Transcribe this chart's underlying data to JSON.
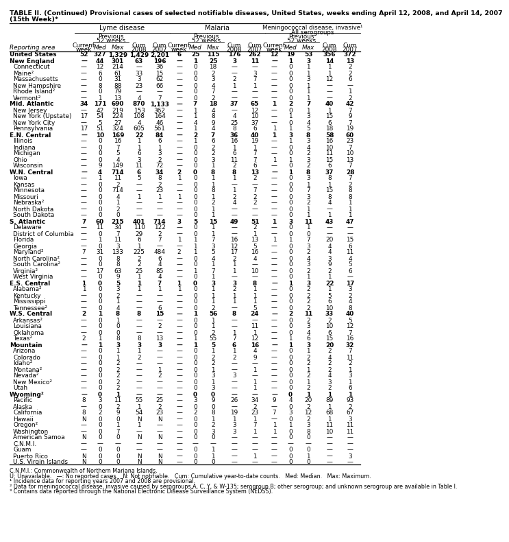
{
  "title_line1": "TABLE II. (Continued) Provisional cases of selected notifiable diseases, United States, weeks ending April 12, 2008, and April 14, 2007",
  "title_line2": "(15th Week)*",
  "rows": [
    [
      "United States",
      "52",
      "327",
      "1,329",
      "1,429",
      "2,201",
      "6",
      "25",
      "115",
      "176",
      "262",
      "12",
      "19",
      "53",
      "356",
      "372"
    ],
    [
      "New England",
      "—",
      "44",
      "301",
      "63",
      "196",
      "—",
      "1",
      "25",
      "3",
      "11",
      "—",
      "1",
      "3",
      "14",
      "13"
    ],
    [
      "Connecticut",
      "—",
      "12",
      "214",
      "—",
      "36",
      "—",
      "0",
      "18",
      "—",
      "—",
      "—",
      "0",
      "1",
      "1",
      "2"
    ],
    [
      "Maine²",
      "—",
      "6",
      "61",
      "33",
      "15",
      "—",
      "0",
      "2",
      "—",
      "3",
      "—",
      "0",
      "1",
      "1",
      "2"
    ],
    [
      "Massachusetts",
      "—",
      "0",
      "31",
      "3",
      "62",
      "—",
      "0",
      "3",
      "2",
      "7",
      "—",
      "0",
      "3",
      "12",
      "6"
    ],
    [
      "New Hampshire",
      "—",
      "8",
      "88",
      "23",
      "66",
      "—",
      "0",
      "4",
      "1",
      "1",
      "—",
      "0",
      "1",
      "—",
      "—"
    ],
    [
      "Rhode Island²",
      "—",
      "0",
      "79",
      "—",
      "—",
      "—",
      "0",
      "7",
      "—",
      "—",
      "—",
      "0",
      "1",
      "—",
      "1"
    ],
    [
      "Vermont²",
      "—",
      "1",
      "13",
      "4",
      "7",
      "—",
      "0",
      "2",
      "—",
      "—",
      "—",
      "0",
      "1",
      "—",
      "2"
    ],
    [
      "Mid. Atlantic",
      "34",
      "171",
      "690",
      "870",
      "1,133",
      "—",
      "7",
      "18",
      "37",
      "65",
      "1",
      "2",
      "7",
      "40",
      "42"
    ],
    [
      "New Jersey",
      "—",
      "42",
      "219",
      "153",
      "362",
      "—",
      "1",
      "4",
      "—",
      "12",
      "—",
      "0",
      "1",
      "1",
      "7"
    ],
    [
      "New York (Upstate)",
      "17",
      "54",
      "224",
      "108",
      "164",
      "—",
      "1",
      "8",
      "4",
      "10",
      "—",
      "1",
      "3",
      "15",
      "9"
    ],
    [
      "New York City",
      "—",
      "5",
      "27",
      "4",
      "46",
      "—",
      "4",
      "9",
      "25",
      "37",
      "—",
      "0",
      "4",
      "6",
      "7"
    ],
    [
      "Pennsylvania",
      "17",
      "51",
      "324",
      "605",
      "561",
      "—",
      "1",
      "4",
      "8",
      "6",
      "1",
      "1",
      "5",
      "18",
      "19"
    ],
    [
      "E.N. Central",
      "—",
      "10",
      "169",
      "22",
      "84",
      "—",
      "2",
      "7",
      "36",
      "40",
      "1",
      "3",
      "8",
      "58",
      "60"
    ],
    [
      "Illinois",
      "—",
      "0",
      "16",
      "1",
      "6",
      "—",
      "1",
      "6",
      "16",
      "19",
      "—",
      "1",
      "3",
      "16",
      "23"
    ],
    [
      "Indiana",
      "—",
      "0",
      "7",
      "1",
      "1",
      "—",
      "0",
      "2",
      "1",
      "1",
      "—",
      "0",
      "4",
      "10",
      "7"
    ],
    [
      "Michigan",
      "—",
      "0",
      "5",
      "6",
      "3",
      "—",
      "0",
      "2",
      "6",
      "7",
      "—",
      "0",
      "2",
      "11",
      "10"
    ],
    [
      "Ohio",
      "—",
      "0",
      "4",
      "3",
      "2",
      "—",
      "0",
      "3",
      "11",
      "7",
      "1",
      "1",
      "3",
      "15",
      "13"
    ],
    [
      "Wisconsin",
      "—",
      "9",
      "149",
      "11",
      "72",
      "—",
      "0",
      "1",
      "2",
      "6",
      "—",
      "0",
      "2",
      "6",
      "7"
    ],
    [
      "W.N. Central",
      "—",
      "4",
      "714",
      "6",
      "34",
      "2",
      "0",
      "8",
      "8",
      "13",
      "—",
      "1",
      "8",
      "37",
      "28"
    ],
    [
      "Iowa",
      "—",
      "1",
      "11",
      "5",
      "8",
      "1",
      "0",
      "1",
      "1",
      "2",
      "—",
      "0",
      "3",
      "8",
      "7"
    ],
    [
      "Kansas",
      "—",
      "0",
      "2",
      "—",
      "2",
      "—",
      "0",
      "1",
      "—",
      "—",
      "—",
      "0",
      "1",
      "1",
      "2"
    ],
    [
      "Minnesota",
      "—",
      "0",
      "714",
      "—",
      "23",
      "—",
      "0",
      "8",
      "1",
      "7",
      "—",
      "0",
      "7",
      "15",
      "8"
    ],
    [
      "Missouri",
      "—",
      "0",
      "4",
      "1",
      "1",
      "1",
      "0",
      "1",
      "2",
      "2",
      "—",
      "0",
      "3",
      "8",
      "8"
    ],
    [
      "Nebraska²",
      "—",
      "0",
      "1",
      "—",
      "—",
      "—",
      "0",
      "2",
      "4",
      "2",
      "—",
      "0",
      "2",
      "4",
      "1"
    ],
    [
      "North Dakota",
      "—",
      "0",
      "2",
      "—",
      "—",
      "—",
      "0",
      "1",
      "—",
      "—",
      "—",
      "0",
      "1",
      "—",
      "1"
    ],
    [
      "South Dakota",
      "—",
      "0",
      "0",
      "—",
      "—",
      "—",
      "0",
      "1",
      "—",
      "—",
      "—",
      "0",
      "1",
      "1",
      "1"
    ],
    [
      "S. Atlantic",
      "7",
      "60",
      "215",
      "401",
      "714",
      "3",
      "5",
      "15",
      "49",
      "51",
      "1",
      "3",
      "11",
      "43",
      "47"
    ],
    [
      "Delaware",
      "—",
      "11",
      "34",
      "110",
      "122",
      "—",
      "0",
      "1",
      "—",
      "2",
      "—",
      "0",
      "1",
      "—",
      "—"
    ],
    [
      "District of Columbia",
      "—",
      "0",
      "7",
      "29",
      "2",
      "—",
      "0",
      "1",
      "—",
      "1",
      "—",
      "0",
      "0",
      "—",
      "—"
    ],
    [
      "Florida",
      "—",
      "1",
      "11",
      "6",
      "7",
      "1",
      "1",
      "7",
      "16",
      "13",
      "1",
      "1",
      "7",
      "20",
      "15"
    ],
    [
      "Georgia",
      "—",
      "0",
      "3",
      "1",
      "—",
      "—",
      "1",
      "3",
      "12",
      "5",
      "—",
      "0",
      "3",
      "4",
      "6"
    ],
    [
      "Maryland²",
      "7",
      "31",
      "133",
      "225",
      "484",
      "2",
      "1",
      "5",
      "17",
      "16",
      "—",
      "0",
      "2",
      "4",
      "11"
    ],
    [
      "North Carolina²",
      "—",
      "0",
      "8",
      "2",
      "6",
      "—",
      "0",
      "4",
      "2",
      "4",
      "—",
      "0",
      "4",
      "3",
      "4"
    ],
    [
      "South Carolina²",
      "—",
      "0",
      "8",
      "2",
      "4",
      "—",
      "0",
      "1",
      "1",
      "—",
      "—",
      "0",
      "3",
      "9",
      "5"
    ],
    [
      "Virginia²",
      "—",
      "17",
      "63",
      "25",
      "85",
      "—",
      "1",
      "7",
      "1",
      "10",
      "—",
      "0",
      "2",
      "2",
      "6"
    ],
    [
      "West Virginia",
      "—",
      "0",
      "9",
      "1",
      "4",
      "—",
      "0",
      "1",
      "—",
      "—",
      "—",
      "0",
      "1",
      "1",
      "—"
    ],
    [
      "E.S. Central",
      "1",
      "0",
      "5",
      "1",
      "7",
      "1",
      "0",
      "3",
      "3",
      "8",
      "—",
      "1",
      "3",
      "22",
      "17"
    ],
    [
      "Alabama²",
      "1",
      "0",
      "3",
      "1",
      "1",
      "1",
      "0",
      "1",
      "2",
      "1",
      "—",
      "0",
      "2",
      "1",
      "3"
    ],
    [
      "Kentucky",
      "—",
      "0",
      "2",
      "—",
      "—",
      "—",
      "0",
      "1",
      "1",
      "1",
      "—",
      "0",
      "2",
      "5",
      "2"
    ],
    [
      "Mississippi",
      "—",
      "0",
      "1",
      "—",
      "—",
      "—",
      "0",
      "1",
      "1",
      "1",
      "—",
      "0",
      "2",
      "6",
      "4"
    ],
    [
      "Tennessee²",
      "—",
      "0",
      "4",
      "—",
      "6",
      "—",
      "0",
      "2",
      "—",
      "5",
      "—",
      "0",
      "2",
      "10",
      "8"
    ],
    [
      "W.S. Central",
      "2",
      "1",
      "8",
      "8",
      "15",
      "—",
      "1",
      "56",
      "8",
      "24",
      "—",
      "2",
      "11",
      "33",
      "40"
    ],
    [
      "Arkansas²",
      "—",
      "0",
      "1",
      "—",
      "—",
      "—",
      "0",
      "1",
      "—",
      "—",
      "—",
      "0",
      "2",
      "2",
      "5"
    ],
    [
      "Louisiana",
      "—",
      "0",
      "0",
      "—",
      "2",
      "—",
      "0",
      "1",
      "—",
      "11",
      "—",
      "0",
      "3",
      "10",
      "12"
    ],
    [
      "Oklahoma",
      "—",
      "0",
      "0",
      "—",
      "—",
      "—",
      "0",
      "2",
      "1",
      "1",
      "—",
      "0",
      "4",
      "6",
      "7"
    ],
    [
      "Texas²",
      "2",
      "1",
      "8",
      "8",
      "13",
      "—",
      "1",
      "55",
      "7",
      "12",
      "—",
      "1",
      "6",
      "15",
      "16"
    ],
    [
      "Mountain",
      "—",
      "1",
      "3",
      "3",
      "3",
      "—",
      "1",
      "5",
      "6",
      "16",
      "—",
      "1",
      "3",
      "20",
      "32"
    ],
    [
      "Arizona",
      "—",
      "0",
      "1",
      "1",
      "—",
      "—",
      "0",
      "1",
      "1",
      "4",
      "—",
      "0",
      "1",
      "2",
      "7"
    ],
    [
      "Colorado",
      "—",
      "0",
      "1",
      "2",
      "—",
      "—",
      "0",
      "2",
      "2",
      "9",
      "—",
      "0",
      "2",
      "4",
      "11"
    ],
    [
      "Idaho²",
      "—",
      "0",
      "2",
      "—",
      "—",
      "—",
      "0",
      "2",
      "—",
      "—",
      "—",
      "0",
      "2",
      "2",
      "2"
    ],
    [
      "Montana²",
      "—",
      "0",
      "2",
      "—",
      "1",
      "—",
      "0",
      "1",
      "—",
      "1",
      "—",
      "0",
      "1",
      "2",
      "1"
    ],
    [
      "Nevada²",
      "—",
      "0",
      "2",
      "—",
      "2",
      "—",
      "0",
      "3",
      "3",
      "—",
      "—",
      "0",
      "2",
      "4",
      "3"
    ],
    [
      "New Mexico²",
      "—",
      "0",
      "2",
      "—",
      "—",
      "—",
      "0",
      "1",
      "—",
      "1",
      "—",
      "0",
      "1",
      "3",
      "1"
    ],
    [
      "Utah",
      "—",
      "0",
      "2",
      "—",
      "—",
      "—",
      "0",
      "3",
      "—",
      "1",
      "—",
      "0",
      "2",
      "2",
      "6"
    ],
    [
      "Wyoming²",
      "—",
      "0",
      "1",
      "—",
      "—",
      "—",
      "0",
      "0",
      "—",
      "—",
      "—",
      "0",
      "1",
      "1",
      "1"
    ],
    [
      "Pacific",
      "8",
      "3",
      "11",
      "55",
      "25",
      "—",
      "3",
      "9",
      "26",
      "34",
      "9",
      "4",
      "20",
      "89",
      "93"
    ],
    [
      "Alaska",
      "—",
      "0",
      "2",
      "1",
      "2",
      "—",
      "0",
      "0",
      "—",
      "2",
      "—",
      "0",
      "2",
      "1",
      "2"
    ],
    [
      "California",
      "8",
      "2",
      "9",
      "54",
      "23",
      "—",
      "2",
      "8",
      "19",
      "23",
      "7",
      "3",
      "12",
      "68",
      "67"
    ],
    [
      "Hawaii",
      "N",
      "0",
      "0",
      "N",
      "N",
      "—",
      "0",
      "1",
      "1",
      "1",
      "—",
      "0",
      "2",
      "1",
      "3"
    ],
    [
      "Oregon²",
      "—",
      "0",
      "1",
      "1",
      "—",
      "—",
      "0",
      "2",
      "3",
      "7",
      "1",
      "1",
      "3",
      "11",
      "11"
    ],
    [
      "Washington",
      "—",
      "0",
      "7",
      "—",
      "—",
      "—",
      "0",
      "3",
      "3",
      "1",
      "1",
      "0",
      "8",
      "10",
      "11"
    ],
    [
      "American Samoa",
      "N",
      "0",
      "0",
      "N",
      "N",
      "—",
      "0",
      "0",
      "—",
      "—",
      "—",
      "0",
      "0",
      "—",
      "—"
    ],
    [
      "C.N.M.I.",
      "—",
      "—",
      "—",
      "—",
      "—",
      "—",
      "—",
      "—",
      "—",
      "—",
      "—",
      "—",
      "—",
      "—",
      "—"
    ],
    [
      "Guam",
      "—",
      "0",
      "0",
      "—",
      "—",
      "—",
      "0",
      "1",
      "—",
      "—",
      "—",
      "0",
      "0",
      "—",
      "—"
    ],
    [
      "Puerto Rico",
      "N",
      "0",
      "0",
      "N",
      "N",
      "—",
      "0",
      "1",
      "—",
      "1",
      "—",
      "0",
      "1",
      "—",
      "3"
    ],
    [
      "U.S. Virgin Islands",
      "N",
      "0",
      "0",
      "N",
      "N",
      "—",
      "0",
      "0",
      "—",
      "—",
      "—",
      "0",
      "0",
      "—",
      "—"
    ]
  ],
  "bold_rows": [
    0,
    1,
    8,
    13,
    19,
    27,
    37,
    42,
    47,
    55
  ],
  "footnotes": [
    "C.N.M.I.: Commonwealth of Northern Mariana Islands.",
    "U: Unavailable.   —: No reported cases.   N: Not notifiable.   Cum: Cumulative year-to-date counts.   Med: Median.   Max: Maximum.",
    "¹ Incidence data for reporting years 2007 and 2008 are provisional.",
    "² Data for meningococcal disease, invasive caused by serogroups A, C, Y, & W-135; serogroup B; other serogroup; and unknown serogroup are available in Table I.",
    "³ Contains data reported through the National Electronic Disease Surveillance System (NEDSS)."
  ]
}
